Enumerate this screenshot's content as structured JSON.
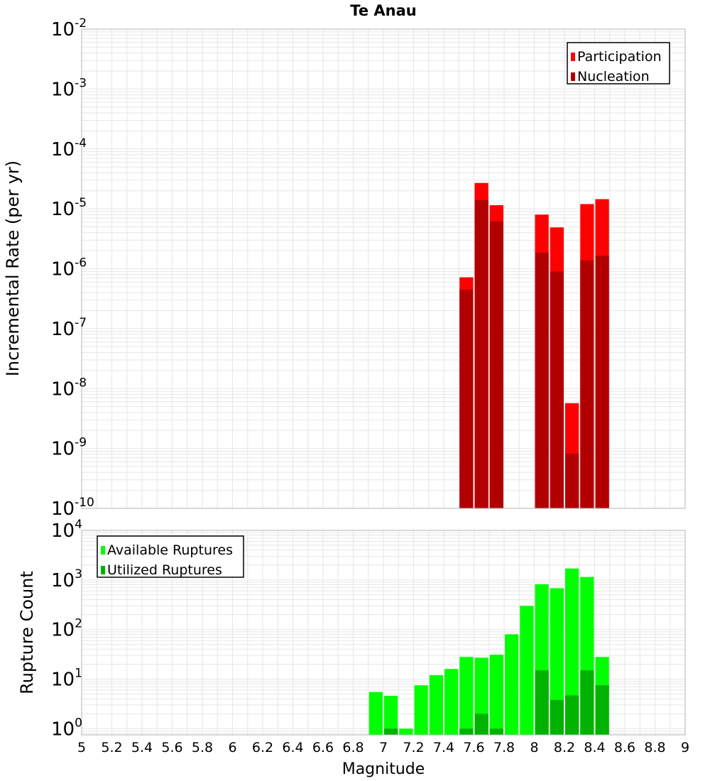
{
  "title": "Te Anau",
  "xlabel": "Magnitude",
  "x_ticks": [
    "5",
    "5.2",
    "5.4",
    "5.6",
    "5.8",
    "6",
    "6.2",
    "6.4",
    "6.6",
    "6.8",
    "7",
    "7.2",
    "7.4",
    "7.6",
    "7.8",
    "8",
    "8.2",
    "8.4",
    "8.6",
    "8.8",
    "9"
  ],
  "colors": {
    "participation": "#ff0000",
    "nucleation": "#b20000",
    "available": "#00ff00",
    "utilized": "#00b200",
    "grid": "#e6e6e6",
    "frame": "#b4b4b4"
  },
  "chart_data": [
    {
      "type": "bar",
      "ylabel": "Incremental Rate (per yr)",
      "yscale": "log",
      "ylim": [
        1e-10,
        0.01
      ],
      "xlim": [
        5,
        9
      ],
      "y_ticks": [
        {
          "base": "10",
          "exp": "-2"
        },
        {
          "base": "10",
          "exp": "-3"
        },
        {
          "base": "10",
          "exp": "-4"
        },
        {
          "base": "10",
          "exp": "-5"
        },
        {
          "base": "10",
          "exp": "-6"
        },
        {
          "base": "10",
          "exp": "-7"
        },
        {
          "base": "10",
          "exp": "-8"
        },
        {
          "base": "10",
          "exp": "-9"
        },
        {
          "base": "10",
          "exp": "-10"
        }
      ],
      "legend": [
        "Participation",
        "Nucleation"
      ],
      "legend_position": "top-right",
      "x": [
        7.55,
        7.65,
        7.75,
        8.05,
        8.15,
        8.25,
        8.35,
        8.45
      ],
      "series": [
        {
          "name": "Participation",
          "values": [
            7.2e-07,
            2.7e-05,
            1.15e-05,
            8e-06,
            4.9e-06,
            5.7e-09,
            1.2e-05,
            1.45e-05
          ]
        },
        {
          "name": "Nucleation",
          "values": [
            4.5e-07,
            1.4e-05,
            6.2e-06,
            1.85e-06,
            9e-07,
            8.2e-10,
            1.38e-06,
            1.65e-06
          ]
        }
      ]
    },
    {
      "type": "bar",
      "ylabel": "Rupture Count",
      "yscale": "log",
      "ylim": [
        0.75,
        10000
      ],
      "xlim": [
        5,
        9
      ],
      "y_ticks": [
        {
          "base": "10",
          "exp": "4"
        },
        {
          "base": "10",
          "exp": "3"
        },
        {
          "base": "10",
          "exp": "2"
        },
        {
          "base": "10",
          "exp": "1"
        },
        {
          "base": "10",
          "exp": "0"
        }
      ],
      "legend": [
        "Available Ruptures",
        "Utilized Ruptures"
      ],
      "legend_position": "top-left",
      "x": [
        6.95,
        7.05,
        7.15,
        7.25,
        7.35,
        7.45,
        7.55,
        7.65,
        7.75,
        7.85,
        7.95,
        8.05,
        8.15,
        8.25,
        8.35,
        8.45
      ],
      "series": [
        {
          "name": "Available Ruptures",
          "values": [
            5.5,
            4.6,
            1,
            7.5,
            12,
            16,
            28,
            27,
            31,
            80,
            300,
            820,
            680,
            1700,
            1150,
            28
          ]
        },
        {
          "name": "Utilized Ruptures",
          "values": [
            0,
            1,
            0,
            0,
            0,
            0,
            1,
            2,
            1,
            0,
            0,
            15,
            3.8,
            4.7,
            15,
            7.5
          ]
        }
      ]
    }
  ]
}
